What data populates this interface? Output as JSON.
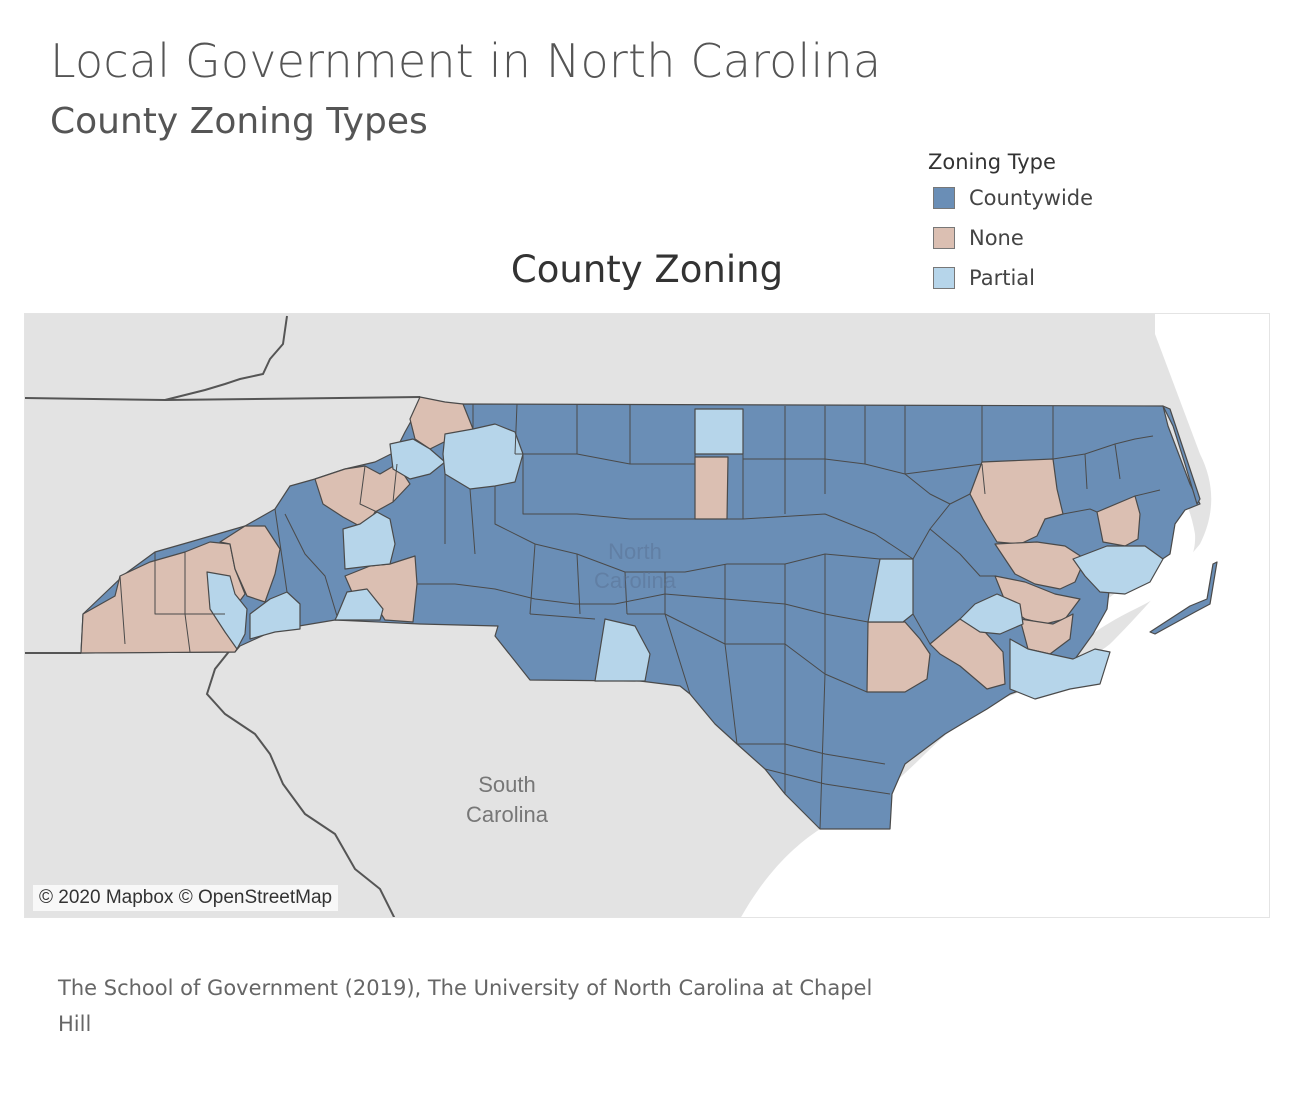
{
  "header": {
    "title": "Local Government in North Carolina",
    "subtitle": "County Zoning Types"
  },
  "legend": {
    "title": "Zoning Type",
    "items": [
      {
        "label": "Countywide",
        "color": "#6a8eb6"
      },
      {
        "label": "None",
        "color": "#dbbfb2"
      },
      {
        "label": "Partial",
        "color": "#b6d5ea"
      }
    ]
  },
  "map": {
    "title": "County Zoning",
    "attribution": "© 2020 Mapbox © OpenStreetMap",
    "labels": {
      "state_nc_line1": "North",
      "state_nc_line2": "Carolina",
      "state_sc_line1": "South",
      "state_sc_line2": "Carolina"
    },
    "colors": {
      "background_land": "#e3e3e3",
      "ocean": "#ffffff",
      "county_border": "#4a4a4a",
      "state_border": "#555555"
    }
  },
  "source": {
    "text": "The School of Government (2019), The University of North Carolina at Chapel Hill"
  }
}
